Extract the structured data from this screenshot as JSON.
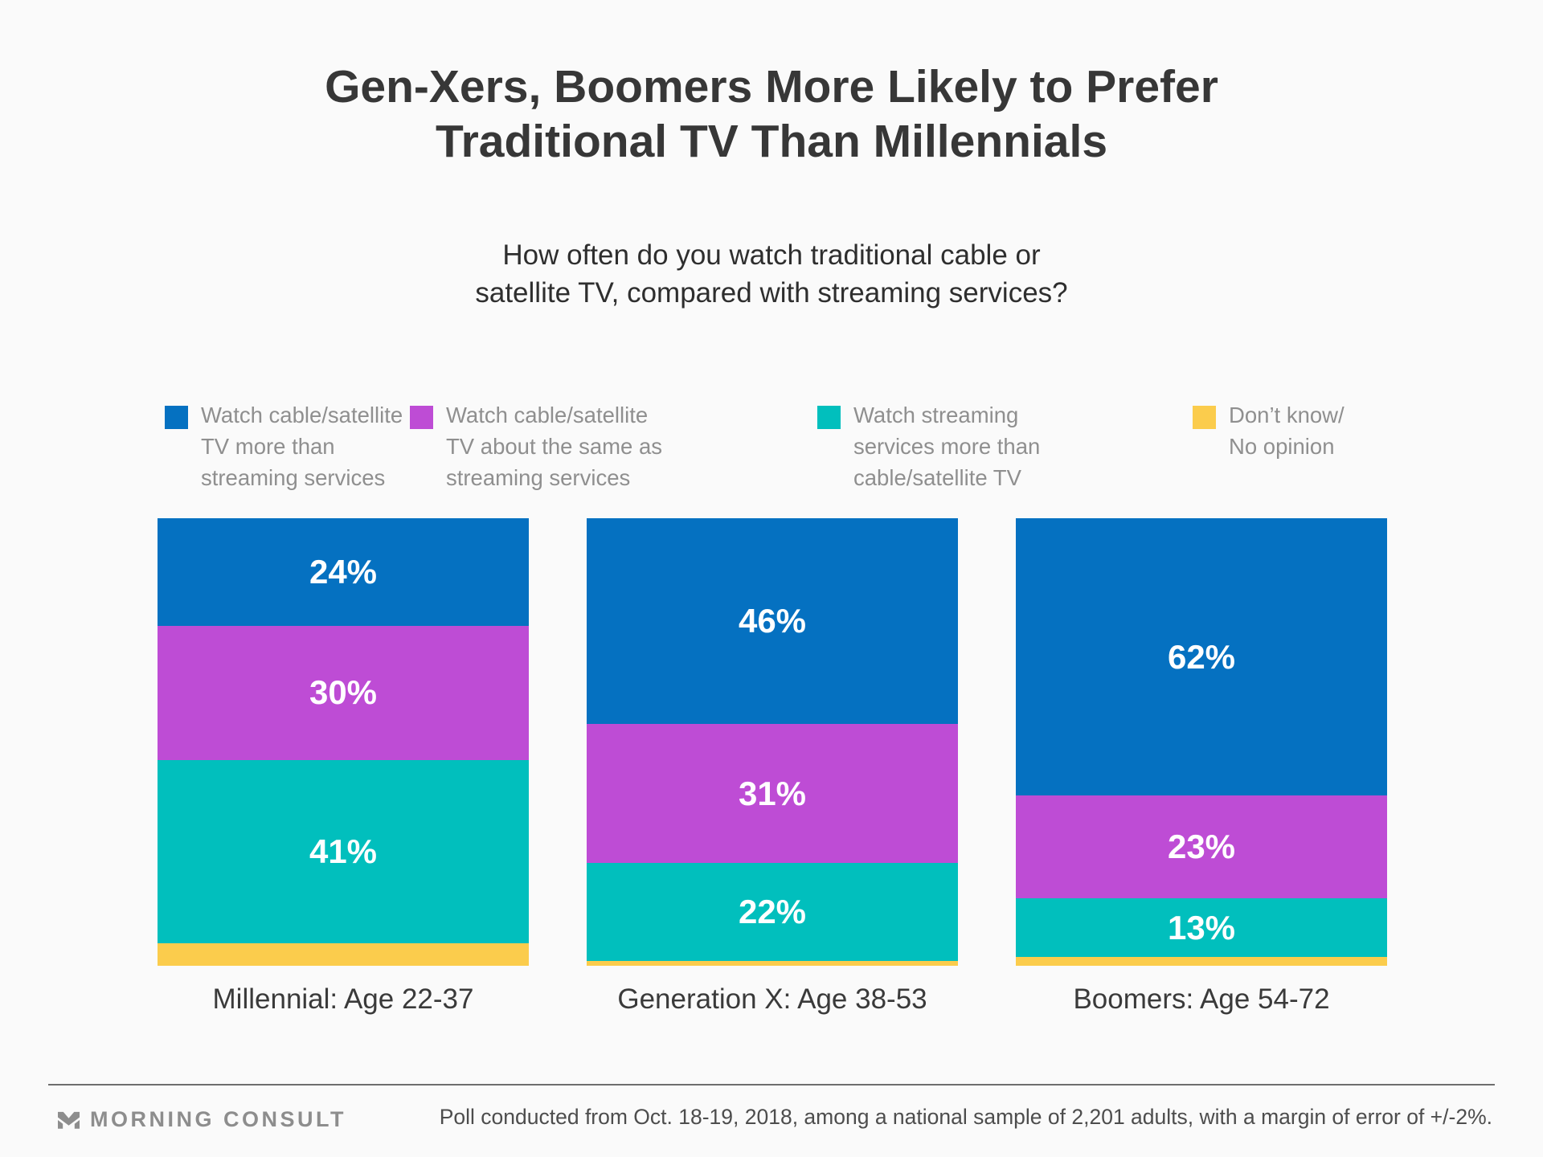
{
  "header": {
    "title": "Gen-Xers, Boomers More Likely to Prefer\nTraditional TV Than Millennials",
    "subtitle": "How often do you watch traditional cable or\nsatellite TV, compared with streaming services?"
  },
  "colors": {
    "blue": "#0571C1",
    "purple": "#BE4CD5",
    "teal": "#01BFBD",
    "yellow": "#FBCC4C",
    "background": "#FAFAFA"
  },
  "legend": {
    "items": [
      {
        "label": "Watch cable/satellite\nTV more than\nstreaming services",
        "color": "blue"
      },
      {
        "label": "Watch cable/satellite\nTV about the same as\nstreaming services",
        "color": "purple"
      },
      {
        "label": "Watch streaming\nservices more than\ncable/satellite TV",
        "color": "teal"
      },
      {
        "label": "Don’t know/\nNo opinion",
        "color": "yellow"
      }
    ]
  },
  "chart_data": {
    "type": "bar",
    "variant": "stacked-vertical-100pct",
    "unit": "percent",
    "grid": false,
    "legend_position": "top",
    "ylim": [
      0,
      100
    ],
    "value_label_format": "{value}%",
    "categories": [
      "Millennial: Age 22-37",
      "Generation X: Age 38-53",
      "Boomers: Age 54-72"
    ],
    "series": [
      {
        "name": "Watch cable/satellite TV more than streaming services",
        "color": "blue",
        "values": [
          24,
          46,
          62
        ],
        "show_labels": true
      },
      {
        "name": "Watch cable/satellite TV about the same as streaming services",
        "color": "purple",
        "values": [
          30,
          31,
          23
        ],
        "show_labels": true
      },
      {
        "name": "Watch streaming services more than cable/satellite TV",
        "color": "teal",
        "values": [
          41,
          22,
          13
        ],
        "show_labels": true
      },
      {
        "name": "Don’t know/No opinion",
        "color": "yellow",
        "values": [
          5,
          1,
          2
        ],
        "show_labels": false
      }
    ]
  },
  "footer": {
    "brand": "MORNING CONSULT",
    "note": "Poll conducted from Oct. 18-19, 2018, among a national sample of 2,201 adults, with a margin of error of +/-2%."
  }
}
